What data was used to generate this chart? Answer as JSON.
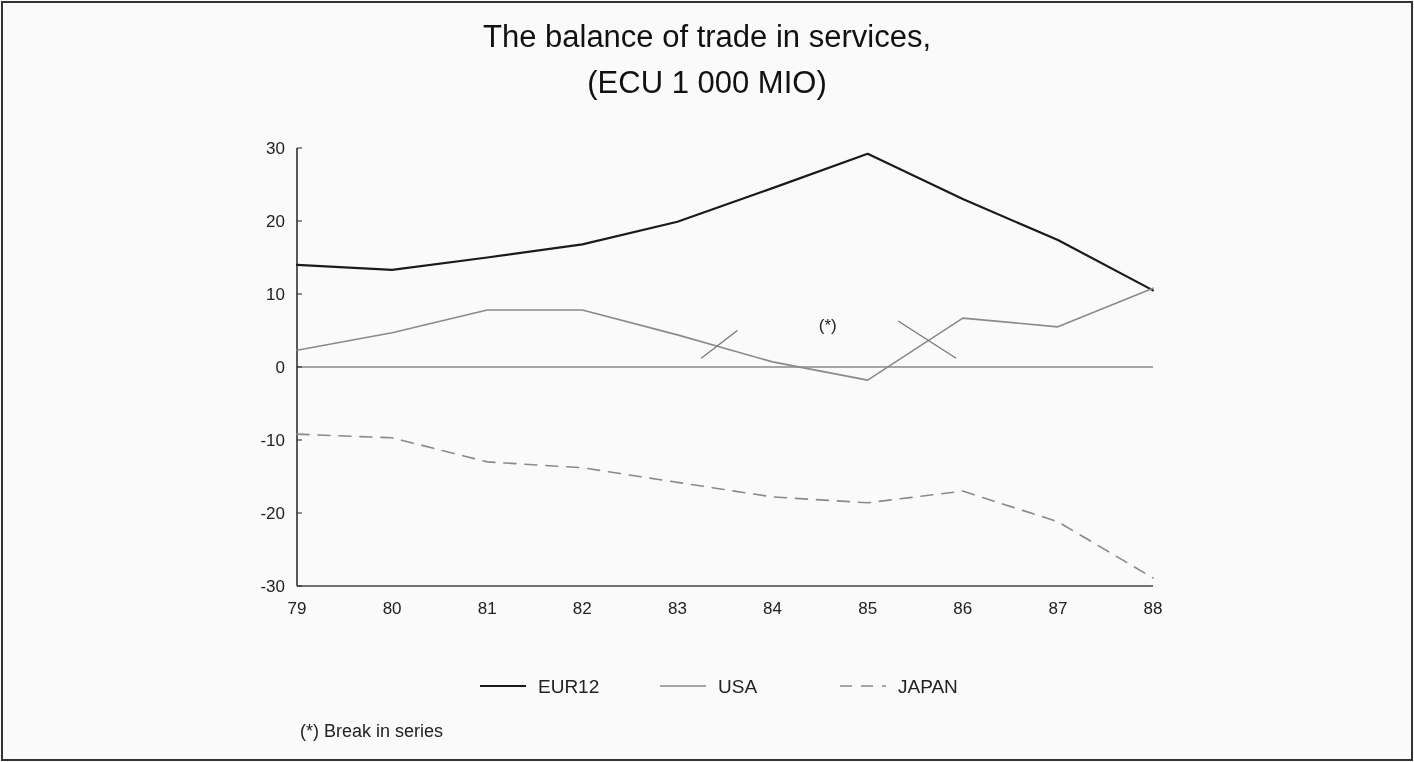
{
  "chart_data": {
    "type": "line",
    "title": "The balance of trade in services,",
    "subtitle": "(ECU 1 000 MIO)",
    "categories": [
      "79",
      "80",
      "81",
      "82",
      "83",
      "84",
      "85",
      "86",
      "87",
      "88"
    ],
    "series": [
      {
        "name": "EUR12",
        "color": "#1a1a1a",
        "line_style": "solid",
        "values": [
          14,
          13.3,
          15,
          16.8,
          19.9,
          24.5,
          29.2,
          23,
          17.4,
          10.5
        ]
      },
      {
        "name": "USA",
        "color": "#8a8a8a",
        "line_style": "solid",
        "values": [
          2.3,
          4.7,
          7.8,
          7.8,
          4.4,
          0.7,
          -1.8,
          6.7,
          5.5,
          10.8
        ]
      },
      {
        "name": "JAPAN",
        "color": "#8a8a8a",
        "line_style": "dashed",
        "values": [
          -9.2,
          -9.7,
          -13,
          -13.8,
          -15.8,
          -17.8,
          -18.6,
          -17,
          -21.2,
          -28.9
        ]
      }
    ],
    "ylim": [
      -30,
      30
    ],
    "yticks": [
      -30,
      -20,
      -10,
      0,
      10,
      20,
      30
    ],
    "ref_lines": [
      {
        "axis": "y",
        "value": 0,
        "color": "#8a8a8a"
      }
    ],
    "annotations": [
      "(*)",
      "(*) Break in series"
    ],
    "grid": false,
    "legend": "bottom",
    "marker": "none"
  }
}
